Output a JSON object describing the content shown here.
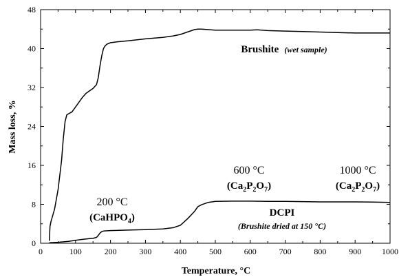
{
  "chart_data": {
    "type": "line",
    "xlabel": "Temperature, °C",
    "ylabel": "Mass loss, %",
    "xlim": [
      0,
      1000
    ],
    "ylim": [
      0,
      48
    ],
    "x_ticks": [
      0,
      100,
      200,
      300,
      400,
      500,
      600,
      700,
      800,
      900,
      1000
    ],
    "y_ticks": [
      0,
      8,
      16,
      24,
      32,
      40,
      48
    ],
    "grid": false,
    "line_color": "#000000",
    "series": [
      {
        "name": "Brushite (wet sample)",
        "x": [
          25,
          27,
          30,
          40,
          50,
          60,
          65,
          70,
          75,
          80,
          90,
          100,
          110,
          120,
          130,
          140,
          150,
          160,
          165,
          170,
          175,
          180,
          185,
          190,
          200,
          220,
          250,
          300,
          350,
          380,
          400,
          420,
          440,
          450,
          460,
          500,
          550,
          600,
          620,
          650,
          700,
          750,
          800,
          850,
          900,
          950,
          1000
        ],
        "y": [
          0.5,
          3.5,
          4.5,
          7,
          11,
          17,
          21.5,
          25,
          26.4,
          26.6,
          27,
          28,
          29,
          30,
          30.8,
          31.3,
          31.8,
          32.6,
          34,
          36.5,
          38.5,
          40,
          40.6,
          40.9,
          41.2,
          41.4,
          41.6,
          42,
          42.3,
          42.6,
          42.9,
          43.4,
          43.9,
          44,
          44,
          43.8,
          43.8,
          43.8,
          43.85,
          43.7,
          43.6,
          43.5,
          43.4,
          43.3,
          43.2,
          43.2,
          43.2
        ]
      },
      {
        "name": "DCPI (Brushite dried at 150 °C)",
        "x": [
          25,
          50,
          80,
          100,
          120,
          140,
          150,
          160,
          165,
          170,
          175,
          180,
          200,
          250,
          300,
          350,
          380,
          400,
          420,
          440,
          450,
          460,
          480,
          500,
          550,
          600,
          650,
          700,
          750,
          800,
          850,
          900,
          950,
          1000
        ],
        "y": [
          0.1,
          0.2,
          0.4,
          0.6,
          0.8,
          0.95,
          1.0,
          1.2,
          1.6,
          2.1,
          2.4,
          2.5,
          2.6,
          2.7,
          2.8,
          2.95,
          3.2,
          3.7,
          5.0,
          6.5,
          7.5,
          7.9,
          8.4,
          8.6,
          8.65,
          8.65,
          8.6,
          8.6,
          8.55,
          8.5,
          8.5,
          8.5,
          8.45,
          8.4
        ]
      }
    ],
    "annotations": {
      "brushite_label": "Brushite",
      "brushite_sub": "(wet sample)",
      "t200": "200 °C",
      "t200_cmp_pre": "(CaHPO",
      "t200_cmp_sub": "4",
      "t200_cmp_post": ")",
      "t600": "600 °C",
      "t1000": "1000 °C",
      "pyro_a": "(Ca",
      "pyro_s1": "2",
      "pyro_b": "P",
      "pyro_s2": "2",
      "pyro_c": "O",
      "pyro_s3": "7",
      "pyro_d": ")",
      "dcpi_label": "DCPI",
      "dcpi_sub": "(Brushite dried at 150 °C)"
    }
  }
}
